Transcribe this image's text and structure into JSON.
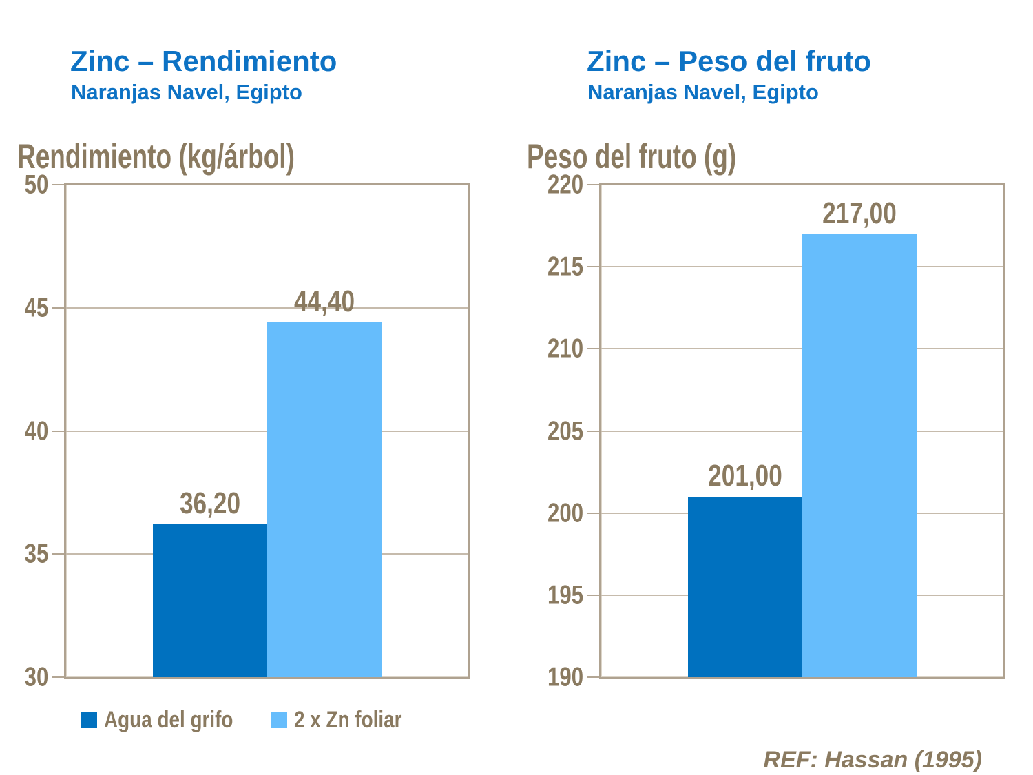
{
  "slide": {
    "background": "#FFFFFF",
    "colors": {
      "title_blue": "#0D72C4",
      "series": [
        "#0071BF",
        "#66BDFC"
      ],
      "text_brown": "#8A7A60",
      "frame": "#AFA290",
      "gridline": "#C6BBAC"
    },
    "ref_text": "REF: Hassan (1995)"
  },
  "legend": {
    "items": [
      {
        "label": "Agua del grifo",
        "series_index": 0
      },
      {
        "label": "2 x Zn foliar",
        "series_index": 1
      }
    ]
  },
  "chart_data": [
    {
      "type": "bar",
      "title": "Zinc – Rendimiento",
      "subtitle": "Naranjas Navel, Egipto",
      "ylabel": "Rendimiento (kg/árbol)",
      "xlabel": "",
      "categories": [
        "Agua del grifo",
        "2 x Zn foliar"
      ],
      "values": [
        36.2,
        44.4
      ],
      "value_labels": [
        "36,20",
        "44,40"
      ],
      "ylim": [
        30,
        50
      ],
      "yticks": [
        30,
        35,
        40,
        45,
        50
      ],
      "grid": true,
      "legend_position": "bottom-left"
    },
    {
      "type": "bar",
      "title": "Zinc – Peso del fruto",
      "subtitle": "Naranjas Navel, Egipto",
      "ylabel": "Peso del fruto (g)",
      "xlabel": "",
      "categories": [
        "Agua del grifo",
        "2 x Zn foliar"
      ],
      "values": [
        201,
        217
      ],
      "value_labels": [
        "201,00",
        "217,00"
      ],
      "ylim": [
        190,
        220
      ],
      "yticks": [
        190,
        195,
        200,
        205,
        210,
        215,
        220
      ],
      "grid": true,
      "legend_position": "none"
    }
  ]
}
